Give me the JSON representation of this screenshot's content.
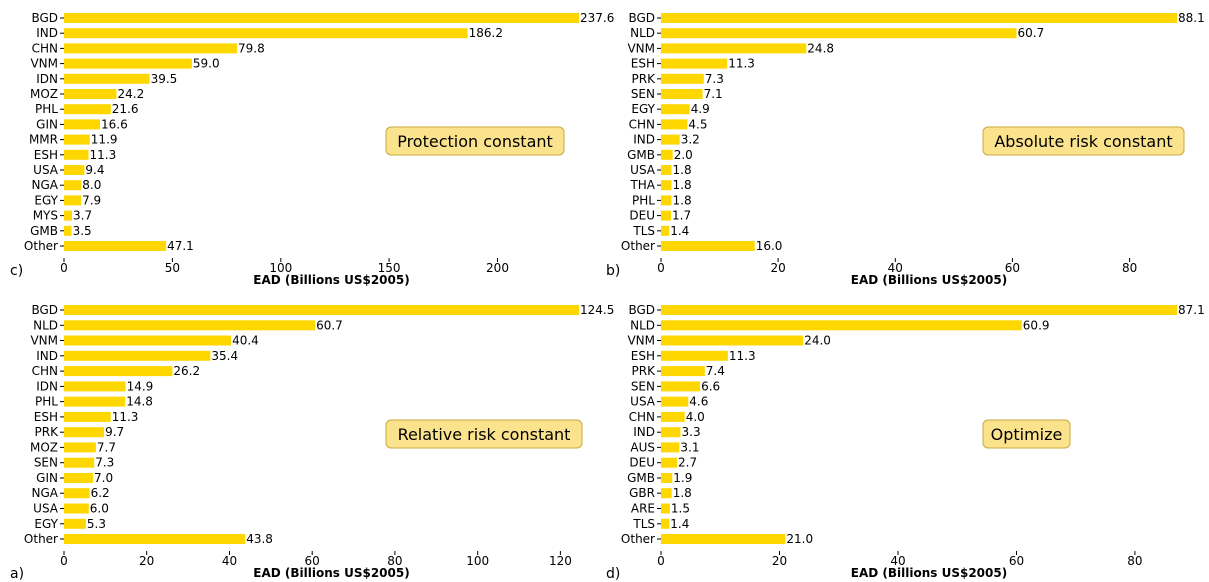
{
  "bar_color": "#ffd700",
  "annotation_fill": "#fbe38e",
  "annotation_stroke": "#c9a93c",
  "chart_data": [
    {
      "type": "bar",
      "orientation": "horizontal",
      "panel_label": "c)",
      "annotation": "Protection constant",
      "xlabel": "EAD (Billions US$2005)",
      "xlim": [
        0,
        237.6
      ],
      "xticks": [
        0,
        50,
        100,
        150,
        200
      ],
      "categories": [
        "BGD",
        "IND",
        "CHN",
        "VNM",
        "IDN",
        "MOZ",
        "PHL",
        "GIN",
        "MMR",
        "ESH",
        "USA",
        "NGA",
        "EGY",
        "MYS",
        "GMB",
        "Other"
      ],
      "values": [
        237.6,
        186.2,
        79.8,
        59.0,
        39.5,
        24.2,
        21.6,
        16.6,
        11.9,
        11.3,
        9.4,
        8.0,
        7.9,
        3.7,
        3.5,
        47.1
      ],
      "value_labels": [
        "237.6",
        "186.2",
        "79.8",
        "59.0",
        "39.5",
        "24.2",
        "21.6",
        "16.6",
        "11.9",
        "11.3",
        "9.4",
        "8.0",
        "7.9",
        "3.7",
        "3.5",
        "47.1"
      ]
    },
    {
      "type": "bar",
      "orientation": "horizontal",
      "panel_label": "b)",
      "annotation": "Absolute risk constant",
      "xlabel": "EAD (Billions US$2005)",
      "xlim": [
        0,
        88.1
      ],
      "xticks": [
        0,
        20,
        40,
        60,
        80
      ],
      "categories": [
        "BGD",
        "NLD",
        "VNM",
        "ESH",
        "PRK",
        "SEN",
        "EGY",
        "CHN",
        "IND",
        "GMB",
        "USA",
        "THA",
        "PHL",
        "DEU",
        "TLS",
        "Other"
      ],
      "values": [
        88.1,
        60.7,
        24.8,
        11.3,
        7.3,
        7.1,
        4.9,
        4.5,
        3.2,
        2.0,
        1.8,
        1.8,
        1.8,
        1.7,
        1.4,
        16.0
      ],
      "value_labels": [
        "88.1",
        "60.7",
        "24.8",
        "11.3",
        "7.3",
        "7.1",
        "4.9",
        "4.5",
        "3.2",
        "2.0",
        "1.8",
        "1.8",
        "1.8",
        "1.7",
        "1.4",
        "16.0"
      ]
    },
    {
      "type": "bar",
      "orientation": "horizontal",
      "panel_label": "a)",
      "annotation": "Relative risk constant",
      "xlabel": "EAD (Billions US$2005)",
      "xlim": [
        0,
        124.5
      ],
      "xticks": [
        0,
        20,
        40,
        60,
        80,
        100,
        120
      ],
      "categories": [
        "BGD",
        "NLD",
        "VNM",
        "IND",
        "CHN",
        "IDN",
        "PHL",
        "ESH",
        "PRK",
        "MOZ",
        "SEN",
        "GIN",
        "NGA",
        "USA",
        "EGY",
        "Other"
      ],
      "values": [
        124.5,
        60.7,
        40.4,
        35.4,
        26.2,
        14.9,
        14.8,
        11.3,
        9.7,
        7.7,
        7.3,
        7.0,
        6.2,
        6.0,
        5.3,
        43.8
      ],
      "value_labels": [
        "124.5",
        "60.7",
        "40.4",
        "35.4",
        "26.2",
        "14.9",
        "14.8",
        "11.3",
        "9.7",
        "7.7",
        "7.3",
        "7.0",
        "6.2",
        "6.0",
        "5.3",
        "43.8"
      ]
    },
    {
      "type": "bar",
      "orientation": "horizontal",
      "panel_label": "d)",
      "annotation": "Optimize",
      "xlabel": "EAD (Billions US$2005)",
      "xlim": [
        0,
        87.1
      ],
      "xticks": [
        0,
        20,
        40,
        60,
        80
      ],
      "categories": [
        "BGD",
        "NLD",
        "VNM",
        "ESH",
        "PRK",
        "SEN",
        "USA",
        "CHN",
        "IND",
        "AUS",
        "DEU",
        "GMB",
        "GBR",
        "ARE",
        "TLS",
        "Other"
      ],
      "values": [
        87.1,
        60.9,
        24.0,
        11.3,
        7.4,
        6.6,
        4.6,
        4.0,
        3.3,
        3.1,
        2.7,
        1.9,
        1.8,
        1.5,
        1.4,
        21.0
      ],
      "value_labels": [
        "87.1",
        "60.9",
        "24.0",
        "11.3",
        "7.4",
        "6.6",
        "4.6",
        "4.0",
        "3.3",
        "3.1",
        "2.7",
        "1.9",
        "1.8",
        "1.5",
        "1.4",
        "21.0"
      ]
    }
  ]
}
